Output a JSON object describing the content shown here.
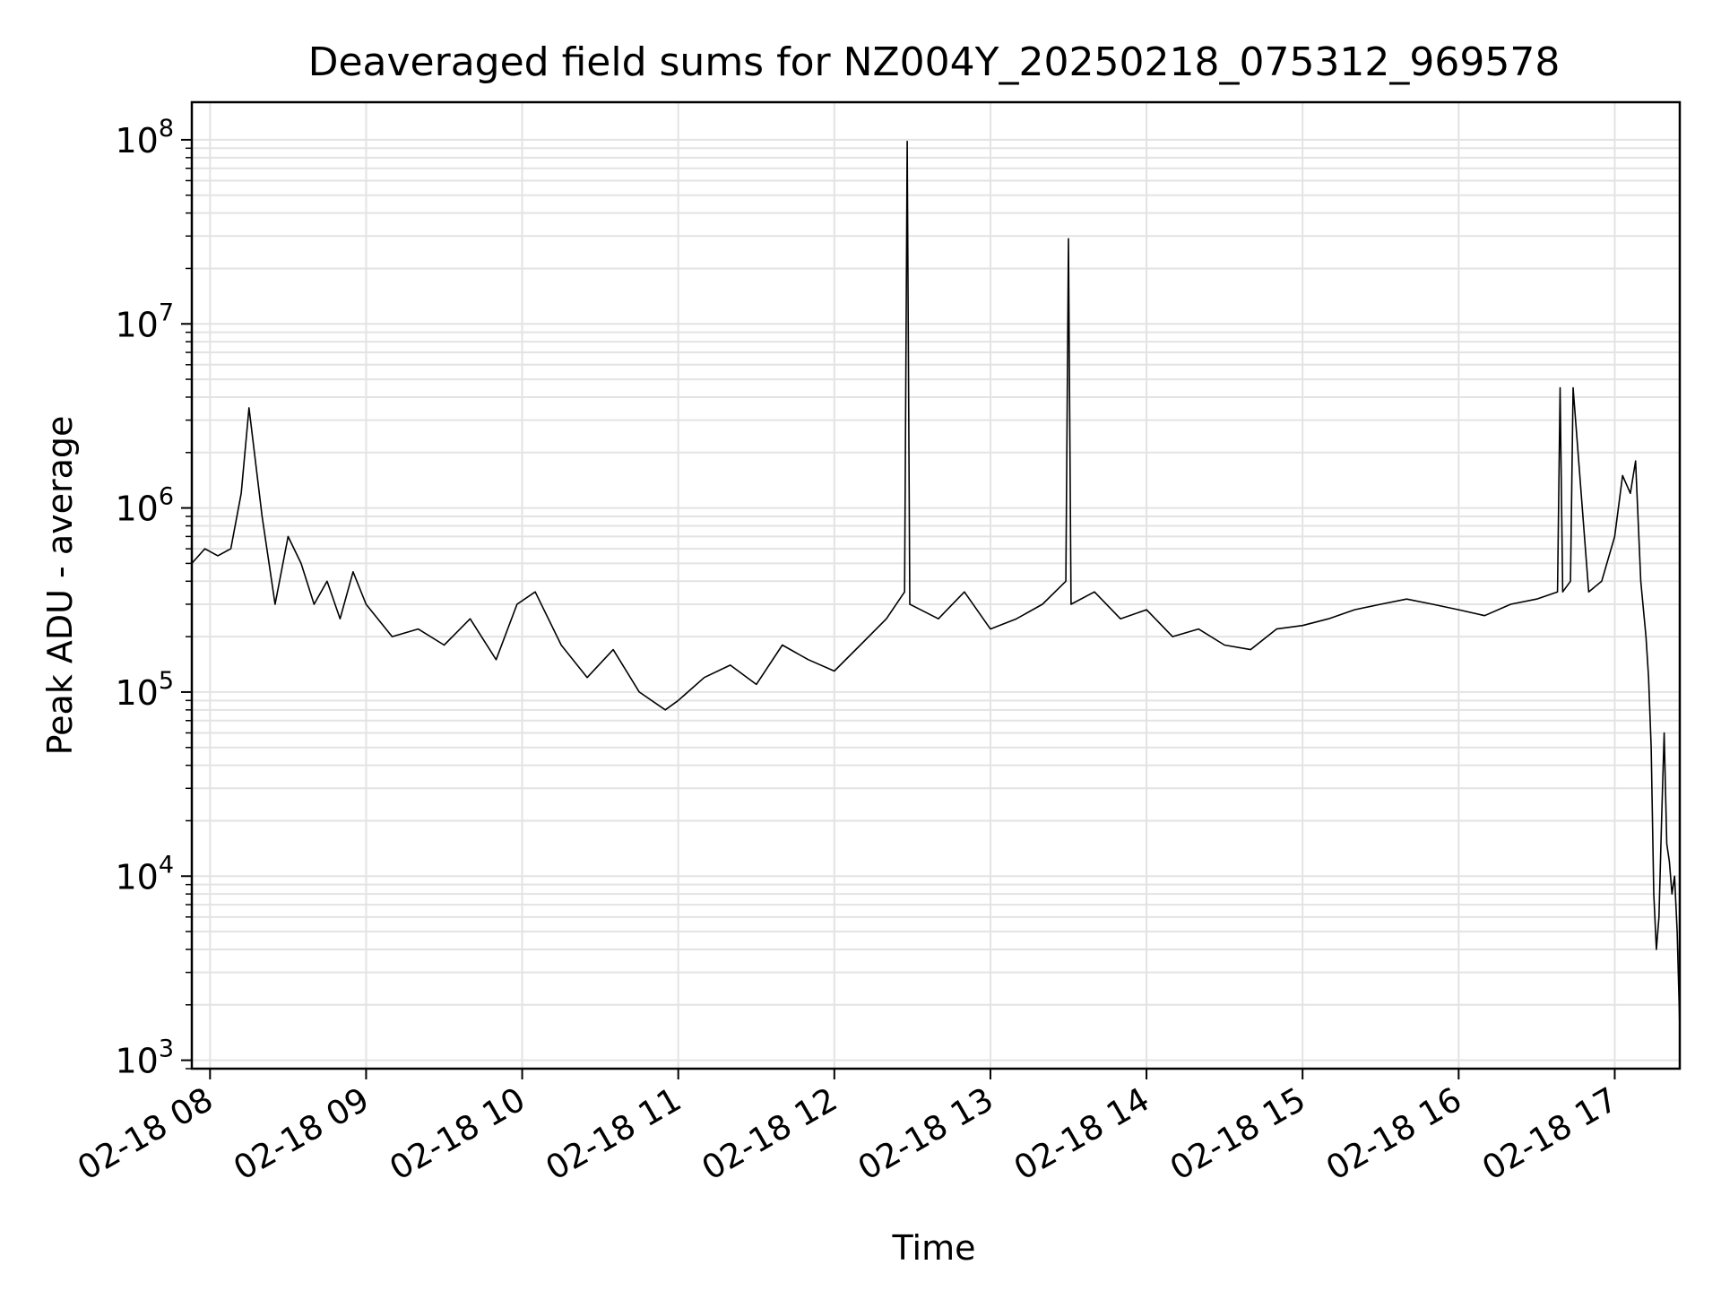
{
  "chart_data": {
    "type": "line",
    "title": "Deaveraged field sums for NZ004Y_20250218_075312_969578",
    "xlabel": "Time",
    "ylabel": "Peak ADU - average",
    "y_scale": "log",
    "ylim": [
      900,
      160000000
    ],
    "xlim": [
      "02-18 07:53",
      "02-18 17:25"
    ],
    "grid": true,
    "legend": "none",
    "line_color": "#000000",
    "grid_color": "#e3e3e3",
    "x_ticks": [
      "02-18 08",
      "02-18 09",
      "02-18 10",
      "02-18 11",
      "02-18 12",
      "02-18 13",
      "02-18 14",
      "02-18 15",
      "02-18 16",
      "02-18 17"
    ],
    "y_ticks": [
      {
        "value": 1000,
        "base": "10",
        "exp": "3"
      },
      {
        "value": 10000,
        "base": "10",
        "exp": "4"
      },
      {
        "value": 100000,
        "base": "10",
        "exp": "5"
      },
      {
        "value": 1000000,
        "base": "10",
        "exp": "6"
      },
      {
        "value": 10000000,
        "base": "10",
        "exp": "7"
      },
      {
        "value": 100000000,
        "base": "10",
        "exp": "8"
      }
    ],
    "series": [
      {
        "x": [
          "02-18 07:53",
          "02-18 07:58",
          "02-18 08:03",
          "02-18 08:08",
          "02-18 08:12",
          "02-18 08:15",
          "02-18 08:20",
          "02-18 08:25",
          "02-18 08:30",
          "02-18 08:35",
          "02-18 08:40",
          "02-18 08:45",
          "02-18 08:50",
          "02-18 08:55",
          "02-18 09:00",
          "02-18 09:10",
          "02-18 09:20",
          "02-18 09:30",
          "02-18 09:40",
          "02-18 09:50",
          "02-18 09:58",
          "02-18 10:05",
          "02-18 10:15",
          "02-18 10:25",
          "02-18 10:35",
          "02-18 10:45",
          "02-18 10:55",
          "02-18 11:00",
          "02-18 11:10",
          "02-18 11:20",
          "02-18 11:30",
          "02-18 11:40",
          "02-18 11:50",
          "02-18 12:00",
          "02-18 12:10",
          "02-18 12:20",
          "02-18 12:27",
          "02-18 12:28",
          "02-18 12:29",
          "02-18 12:40",
          "02-18 12:50",
          "02-18 13:00",
          "02-18 13:10",
          "02-18 13:20",
          "02-18 13:29",
          "02-18 13:30",
          "02-18 13:31",
          "02-18 13:40",
          "02-18 13:50",
          "02-18 14:00",
          "02-18 14:10",
          "02-18 14:20",
          "02-18 14:30",
          "02-18 14:40",
          "02-18 14:50",
          "02-18 15:00",
          "02-18 15:10",
          "02-18 15:20",
          "02-18 15:30",
          "02-18 15:40",
          "02-18 15:50",
          "02-18 16:00",
          "02-18 16:10",
          "02-18 16:20",
          "02-18 16:30",
          "02-18 16:38",
          "02-18 16:39",
          "02-18 16:40",
          "02-18 16:43",
          "02-18 16:44",
          "02-18 16:50",
          "02-18 16:55",
          "02-18 17:00",
          "02-18 17:03",
          "02-18 17:06",
          "02-18 17:08",
          "02-18 17:10",
          "02-18 17:12",
          "02-18 17:13",
          "02-18 17:14",
          "02-18 17:15",
          "02-18 17:16",
          "02-18 17:17",
          "02-18 17:18",
          "02-18 17:19",
          "02-18 17:20",
          "02-18 17:21",
          "02-18 17:22",
          "02-18 17:23",
          "02-18 17:24",
          "02-18 17:25"
        ],
        "values": [
          500000,
          600000,
          550000,
          600000,
          1200000,
          3500000,
          900000,
          300000,
          700000,
          500000,
          300000,
          400000,
          250000,
          450000,
          300000,
          200000,
          220000,
          180000,
          250000,
          150000,
          300000,
          350000,
          180000,
          120000,
          170000,
          100000,
          80000,
          90000,
          120000,
          140000,
          110000,
          180000,
          150000,
          130000,
          180000,
          250000,
          350000,
          98000000,
          300000,
          250000,
          350000,
          220000,
          250000,
          300000,
          400000,
          29000000,
          300000,
          350000,
          250000,
          280000,
          200000,
          220000,
          180000,
          170000,
          220000,
          230000,
          250000,
          280000,
          300000,
          320000,
          300000,
          280000,
          260000,
          300000,
          320000,
          350000,
          4500000,
          350000,
          400000,
          4500000,
          350000,
          400000,
          700000,
          1500000,
          1200000,
          1800000,
          400000,
          200000,
          120000,
          50000,
          8000,
          4000,
          6000,
          20000,
          60000,
          15000,
          12000,
          8000,
          10000,
          5000,
          1500
        ]
      }
    ]
  }
}
